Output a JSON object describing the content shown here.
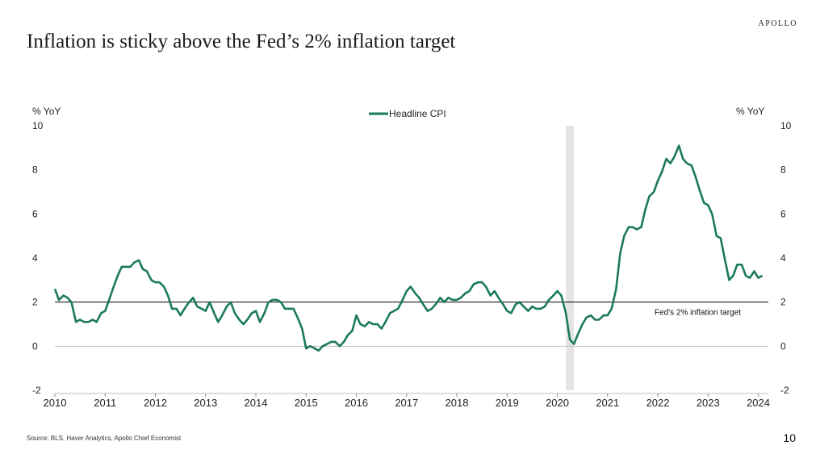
{
  "header": {
    "brand": "APOLLO",
    "title": "Inflation is sticky above the Fed’s 2% inflation target"
  },
  "footer": {
    "source": "Source: BLS, Haver Analytics, Apollo Chief Economist",
    "page_number": "10"
  },
  "colors": {
    "series": "#1b7a5a",
    "recession": "#e4e4e4",
    "target_line": "#000000",
    "text": "#222222"
  },
  "chart_data": {
    "type": "line",
    "title": "",
    "ylabel_left": "% YoY",
    "ylabel_right": "% YoY",
    "ylim": [
      -2,
      10
    ],
    "yticks": [
      -2,
      0,
      2,
      4,
      6,
      8,
      10
    ],
    "xlim": [
      2010.0,
      2024.2
    ],
    "xticks": [
      2010,
      2011,
      2012,
      2013,
      2014,
      2015,
      2016,
      2017,
      2018,
      2019,
      2020,
      2021,
      2022,
      2023,
      2024
    ],
    "legend": {
      "position": "top-center",
      "entries": [
        "Headline CPI"
      ]
    },
    "shaded_region": {
      "x_start": 2020.17,
      "x_end": 2020.33,
      "label": ""
    },
    "reference_line": {
      "y": 2,
      "label": "Fed's 2% inflation target"
    },
    "series": [
      {
        "name": "Headline CPI",
        "x": [
          2010.0,
          2010.08,
          2010.17,
          2010.25,
          2010.33,
          2010.42,
          2010.5,
          2010.58,
          2010.67,
          2010.75,
          2010.83,
          2010.92,
          2011.0,
          2011.08,
          2011.17,
          2011.25,
          2011.33,
          2011.42,
          2011.5,
          2011.58,
          2011.67,
          2011.75,
          2011.83,
          2011.92,
          2012.0,
          2012.08,
          2012.17,
          2012.25,
          2012.33,
          2012.42,
          2012.5,
          2012.58,
          2012.67,
          2012.75,
          2012.83,
          2012.92,
          2013.0,
          2013.08,
          2013.17,
          2013.25,
          2013.33,
          2013.42,
          2013.5,
          2013.58,
          2013.67,
          2013.75,
          2013.83,
          2013.92,
          2014.0,
          2014.08,
          2014.17,
          2014.25,
          2014.33,
          2014.42,
          2014.5,
          2014.58,
          2014.67,
          2014.75,
          2014.83,
          2014.92,
          2015.0,
          2015.08,
          2015.17,
          2015.25,
          2015.33,
          2015.42,
          2015.5,
          2015.58,
          2015.67,
          2015.75,
          2015.83,
          2015.92,
          2016.0,
          2016.08,
          2016.17,
          2016.25,
          2016.33,
          2016.42,
          2016.5,
          2016.58,
          2016.67,
          2016.75,
          2016.83,
          2016.92,
          2017.0,
          2017.08,
          2017.17,
          2017.25,
          2017.33,
          2017.42,
          2017.5,
          2017.58,
          2017.67,
          2017.75,
          2017.83,
          2017.92,
          2018.0,
          2018.08,
          2018.17,
          2018.25,
          2018.33,
          2018.42,
          2018.5,
          2018.58,
          2018.67,
          2018.75,
          2018.83,
          2018.92,
          2019.0,
          2019.08,
          2019.17,
          2019.25,
          2019.33,
          2019.42,
          2019.5,
          2019.58,
          2019.67,
          2019.75,
          2019.83,
          2019.92,
          2020.0,
          2020.08,
          2020.17,
          2020.25,
          2020.33,
          2020.42,
          2020.5,
          2020.58,
          2020.67,
          2020.75,
          2020.83,
          2020.92,
          2021.0,
          2021.08,
          2021.17,
          2021.25,
          2021.33,
          2021.42,
          2021.5,
          2021.58,
          2021.67,
          2021.75,
          2021.83,
          2021.92,
          2022.0,
          2022.08,
          2022.17,
          2022.25,
          2022.33,
          2022.42,
          2022.5,
          2022.58,
          2022.67,
          2022.75,
          2022.83,
          2022.92,
          2023.0,
          2023.08,
          2023.17,
          2023.25,
          2023.33,
          2023.42,
          2023.5,
          2023.58,
          2023.67,
          2023.75,
          2023.83,
          2023.92,
          2024.0,
          2024.08
        ],
        "values": [
          2.6,
          2.1,
          2.3,
          2.2,
          2.0,
          1.1,
          1.2,
          1.1,
          1.1,
          1.2,
          1.1,
          1.5,
          1.6,
          2.1,
          2.7,
          3.2,
          3.6,
          3.6,
          3.6,
          3.8,
          3.9,
          3.5,
          3.4,
          3.0,
          2.9,
          2.9,
          2.7,
          2.3,
          1.7,
          1.7,
          1.4,
          1.7,
          2.0,
          2.2,
          1.8,
          1.7,
          1.6,
          2.0,
          1.5,
          1.1,
          1.4,
          1.8,
          2.0,
          1.5,
          1.2,
          1.0,
          1.2,
          1.5,
          1.6,
          1.1,
          1.5,
          2.0,
          2.1,
          2.1,
          2.0,
          1.7,
          1.7,
          1.7,
          1.3,
          0.8,
          -0.1,
          0.0,
          -0.1,
          -0.2,
          0.0,
          0.1,
          0.2,
          0.2,
          0.0,
          0.2,
          0.5,
          0.7,
          1.4,
          1.0,
          0.9,
          1.1,
          1.0,
          1.0,
          0.8,
          1.1,
          1.5,
          1.6,
          1.7,
          2.1,
          2.5,
          2.7,
          2.4,
          2.2,
          1.9,
          1.6,
          1.7,
          1.9,
          2.2,
          2.0,
          2.2,
          2.1,
          2.1,
          2.2,
          2.4,
          2.5,
          2.8,
          2.9,
          2.9,
          2.7,
          2.3,
          2.5,
          2.2,
          1.9,
          1.6,
          1.5,
          1.9,
          2.0,
          1.8,
          1.6,
          1.8,
          1.7,
          1.7,
          1.8,
          2.1,
          2.3,
          2.5,
          2.3,
          1.5,
          0.3,
          0.1,
          0.6,
          1.0,
          1.3,
          1.4,
          1.2,
          1.2,
          1.4,
          1.4,
          1.7,
          2.6,
          4.2,
          5.0,
          5.4,
          5.4,
          5.3,
          5.4,
          6.2,
          6.8,
          7.0,
          7.5,
          7.9,
          8.5,
          8.3,
          8.6,
          9.1,
          8.5,
          8.3,
          8.2,
          7.7,
          7.1,
          6.5,
          6.4,
          6.0,
          5.0,
          4.9,
          4.0,
          3.0,
          3.2,
          3.7,
          3.7,
          3.2,
          3.1,
          3.4,
          3.1,
          3.2
        ]
      }
    ]
  }
}
